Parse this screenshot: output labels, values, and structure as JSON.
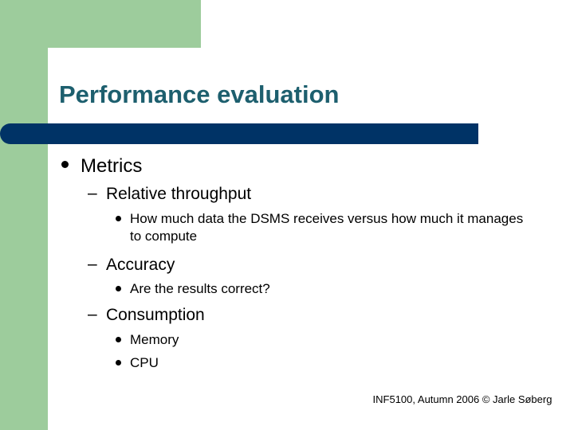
{
  "slide": {
    "title": "Performance evaluation",
    "bullets": [
      {
        "text": "Metrics",
        "subitems": [
          {
            "text": "Relative throughput",
            "points": [
              "How much data the DSMS receives versus how much it manages to compute"
            ]
          },
          {
            "text": "Accuracy",
            "points": [
              "Are the results correct?"
            ]
          },
          {
            "text": "Consumption",
            "points": [
              "Memory",
              "CPU"
            ]
          }
        ]
      }
    ],
    "footer": "INF5100, Autumn 2006 © Jarle Søberg"
  },
  "colors": {
    "accent_green": "#9dcc9c",
    "title_color": "#1d5f6e",
    "title_bar": "#003366"
  }
}
